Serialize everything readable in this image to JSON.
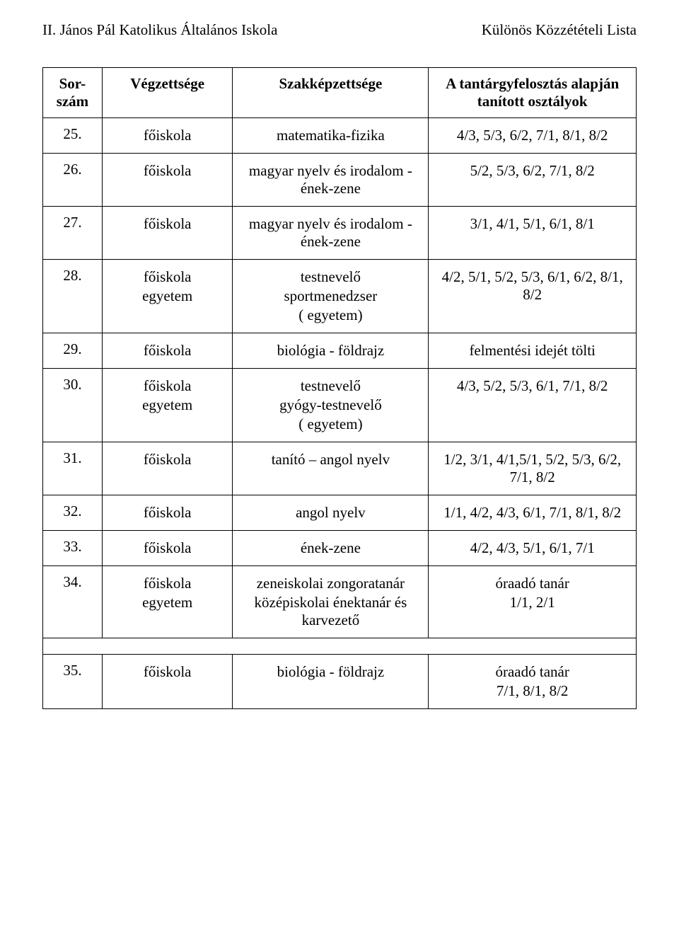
{
  "header": {
    "left": "II. János Pál Katolikus Általános Iskola",
    "right": "Különös Közzétételi Lista"
  },
  "table": {
    "headers": {
      "num": "Sor-szám",
      "veg": "Végzettsége",
      "szak": "Szakképzettsége",
      "tan": "A tantárgyfelosztás alapján tanított osztályok"
    },
    "rows": [
      {
        "num": "25.",
        "veg": [
          "főiskola"
        ],
        "szak": [
          "matematika-fizika"
        ],
        "tan": [
          "4/3, 5/3, 6/2, 7/1, 8/1, 8/2"
        ]
      },
      {
        "num": "26.",
        "veg": [
          "főiskola"
        ],
        "szak": [
          "magyar nyelv és irodalom - ének-zene"
        ],
        "tan": [
          "5/2, 5/3, 6/2, 7/1, 8/2"
        ]
      },
      {
        "num": "27.",
        "veg": [
          "főiskola"
        ],
        "szak": [
          "magyar nyelv és irodalom - ének-zene"
        ],
        "tan": [
          "3/1, 4/1, 5/1, 6/1, 8/1"
        ]
      },
      {
        "num": "28.",
        "veg": [
          "főiskola",
          "egyetem"
        ],
        "szak": [
          "testnevelő",
          "sportmenedzser",
          "( egyetem)"
        ],
        "tan": [
          "4/2, 5/1, 5/2, 5/3, 6/1, 6/2, 8/1, 8/2"
        ]
      },
      {
        "num": "29.",
        "veg": [
          "főiskola"
        ],
        "szak": [
          "biológia - földrajz"
        ],
        "tan": [
          "felmentési idejét tölti"
        ]
      },
      {
        "num": "30.",
        "veg": [
          "főiskola",
          "egyetem"
        ],
        "szak": [
          "testnevelő",
          "gyógy-testnevelő",
          "( egyetem)"
        ],
        "tan": [
          "4/3, 5/2, 5/3, 6/1, 7/1, 8/2"
        ]
      },
      {
        "num": "31.",
        "veg": [
          "főiskola"
        ],
        "szak": [
          "tanító – angol nyelv"
        ],
        "tan": [
          "1/2, 3/1, 4/1,5/1, 5/2, 5/3, 6/2, 7/1, 8/2"
        ]
      },
      {
        "num": "32.",
        "veg": [
          "főiskola"
        ],
        "szak": [
          "angol nyelv"
        ],
        "tan": [
          "1/1, 4/2, 4/3, 6/1, 7/1, 8/1, 8/2"
        ]
      },
      {
        "num": "33.",
        "veg": [
          "főiskola"
        ],
        "szak": [
          "ének-zene"
        ],
        "tan": [
          "4/2, 4/3, 5/1, 6/1, 7/1"
        ]
      },
      {
        "num": "34.",
        "veg": [
          "főiskola",
          "egyetem"
        ],
        "szak": [
          "zeneiskolai zongoratanár",
          "középiskolai énektanár és karvezető"
        ],
        "tan": [
          "óraadó tanár",
          "1/1, 2/1"
        ]
      }
    ],
    "row35": {
      "num": "35.",
      "veg": [
        "főiskola"
      ],
      "szak": [
        "biológia - földrajz"
      ],
      "tan": [
        "óraadó tanár",
        "7/1, 8/1, 8/2"
      ]
    }
  }
}
